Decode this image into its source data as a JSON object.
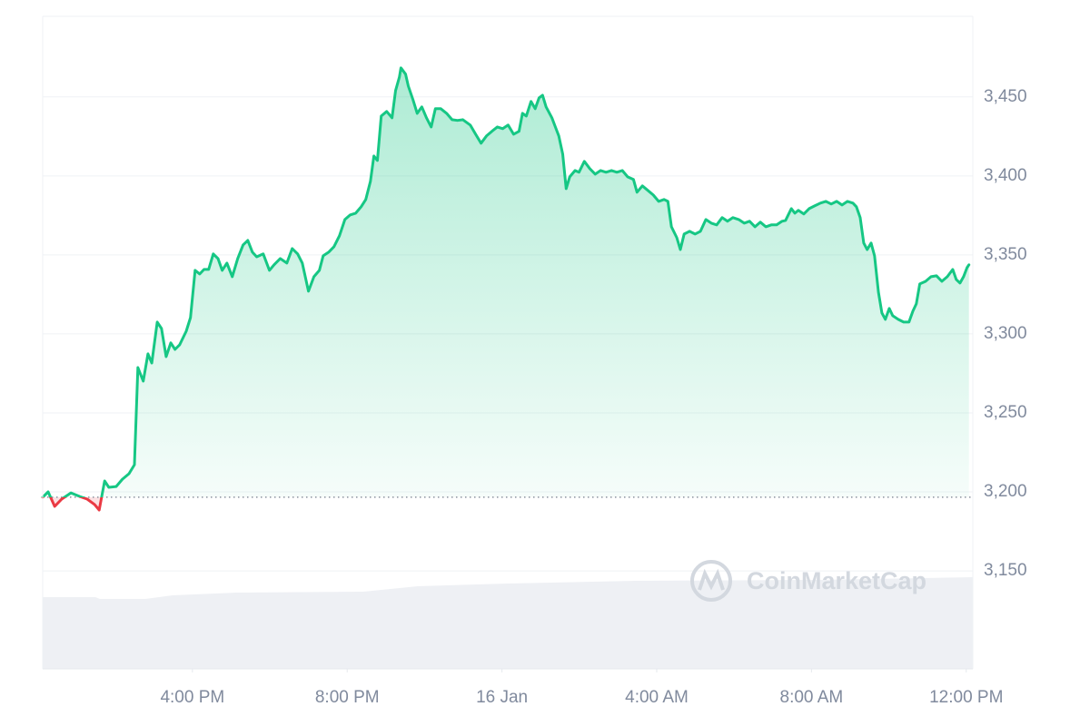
{
  "chart_data": {
    "type": "line",
    "watermark": "CoinMarketCap",
    "color": "#16c784",
    "negative_color": "#ea3943",
    "baseline": 3196.6,
    "grid": true,
    "y_axis_side": "right",
    "xlim": [
      12.13,
      36.17
    ],
    "ylim": [
      3088,
      3501
    ],
    "xticks": [
      {
        "value": 16,
        "label": "4:00 PM"
      },
      {
        "value": 20,
        "label": "8:00 PM"
      },
      {
        "value": 24,
        "label": "16 Jan"
      },
      {
        "value": 28,
        "label": "4:00 AM"
      },
      {
        "value": 32,
        "label": "8:00 AM"
      },
      {
        "value": 36,
        "label": "12:00 PM"
      }
    ],
    "yticks": [
      {
        "value": 3150,
        "label": "3,150"
      },
      {
        "value": 3200,
        "label": "3,200"
      },
      {
        "value": 3250,
        "label": "3,250"
      },
      {
        "value": 3300,
        "label": "3,300"
      },
      {
        "value": 3350,
        "label": "3,350"
      },
      {
        "value": 3400,
        "label": "3,400"
      },
      {
        "value": 3450,
        "label": "3,450"
      }
    ],
    "x": [
      12.13,
      12.27,
      12.44,
      12.62,
      12.86,
      13.09,
      13.28,
      13.47,
      13.59,
      13.73,
      13.84,
      14.03,
      14.19,
      14.36,
      14.5,
      14.59,
      14.73,
      14.85,
      14.95,
      15.09,
      15.2,
      15.32,
      15.44,
      15.55,
      15.67,
      15.84,
      15.95,
      16.07,
      16.19,
      16.3,
      16.42,
      16.54,
      16.66,
      16.77,
      16.89,
      17.03,
      17.17,
      17.31,
      17.43,
      17.55,
      17.66,
      17.83,
      17.99,
      18.11,
      18.27,
      18.44,
      18.58,
      18.72,
      18.84,
      19.0,
      19.14,
      19.28,
      19.38,
      19.52,
      19.66,
      19.8,
      19.94,
      20.08,
      20.22,
      20.36,
      20.48,
      20.6,
      20.69,
      20.78,
      20.88,
      21.02,
      21.16,
      21.25,
      21.35,
      21.39,
      21.51,
      21.58,
      21.7,
      21.81,
      21.93,
      22.05,
      22.17,
      22.28,
      22.42,
      22.57,
      22.71,
      22.85,
      22.99,
      23.18,
      23.32,
      23.46,
      23.6,
      23.74,
      23.88,
      24.02,
      24.16,
      24.3,
      24.44,
      24.53,
      24.63,
      24.75,
      24.86,
      24.96,
      25.05,
      25.14,
      25.29,
      25.38,
      25.47,
      25.57,
      25.66,
      25.75,
      25.89,
      25.99,
      26.13,
      26.27,
      26.41,
      26.55,
      26.69,
      26.83,
      26.97,
      27.11,
      27.25,
      27.4,
      27.49,
      27.63,
      27.77,
      27.91,
      28.05,
      28.19,
      28.29,
      28.38,
      28.52,
      28.61,
      28.71,
      28.85,
      28.99,
      29.13,
      29.27,
      29.41,
      29.55,
      29.69,
      29.83,
      29.97,
      30.12,
      30.26,
      30.4,
      30.54,
      30.68,
      30.82,
      30.96,
      31.1,
      31.24,
      31.33,
      31.48,
      31.57,
      31.66,
      31.8,
      31.94,
      32.08,
      32.23,
      32.37,
      32.51,
      32.65,
      32.79,
      32.93,
      33.07,
      33.16,
      33.26,
      33.35,
      33.44,
      33.54,
      33.63,
      33.73,
      33.82,
      33.91,
      34.01,
      34.1,
      34.24,
      34.38,
      34.52,
      34.62,
      34.71,
      34.8,
      34.95,
      35.09,
      35.23,
      35.37,
      35.51,
      35.65,
      35.74,
      35.84,
      35.93,
      36.02,
      36.07
    ],
    "values": [
      3196.6,
      3200.0,
      3190.8,
      3195.4,
      3199.4,
      3197.1,
      3195.4,
      3192.0,
      3188.5,
      3206.9,
      3202.9,
      3203.4,
      3208.0,
      3211.5,
      3217.2,
      3278.7,
      3270.1,
      3287.4,
      3281.6,
      3307.5,
      3303.4,
      3285.6,
      3294.3,
      3290.2,
      3293.1,
      3301.7,
      3310.3,
      3340.2,
      3337.9,
      3340.8,
      3340.8,
      3350.6,
      3347.7,
      3340.2,
      3344.8,
      3336.2,
      3347.7,
      3356.3,
      3359.2,
      3351.7,
      3348.8,
      3350.6,
      3340.2,
      3343.7,
      3347.7,
      3344.8,
      3354.0,
      3350.6,
      3344.8,
      3327.0,
      3336.2,
      3340.2,
      3349.4,
      3351.7,
      3355.2,
      3362.1,
      3372.4,
      3375.3,
      3376.4,
      3380.5,
      3385.1,
      3396.5,
      3412.6,
      3409.8,
      3437.9,
      3440.8,
      3436.8,
      3454.0,
      3462.6,
      3468.4,
      3464.4,
      3456.9,
      3448.3,
      3439.6,
      3443.7,
      3436.8,
      3431.0,
      3442.5,
      3442.5,
      3439.6,
      3435.6,
      3435.1,
      3435.6,
      3432.2,
      3426.4,
      3420.7,
      3425.3,
      3428.2,
      3431.0,
      3429.9,
      3432.2,
      3426.4,
      3428.2,
      3439.6,
      3437.9,
      3447.1,
      3442.5,
      3449.4,
      3451.1,
      3443.7,
      3436.8,
      3431.0,
      3425.3,
      3413.8,
      3391.9,
      3399.4,
      3403.4,
      3402.3,
      3409.2,
      3404.6,
      3401.1,
      3403.4,
      3402.3,
      3403.4,
      3402.3,
      3403.4,
      3399.4,
      3397.7,
      3389.7,
      3393.7,
      3390.8,
      3387.9,
      3383.9,
      3385.1,
      3383.9,
      3367.8,
      3360.9,
      3353.4,
      3363.2,
      3364.9,
      3363.2,
      3364.9,
      3372.4,
      3370.1,
      3369.0,
      3373.6,
      3371.3,
      3373.6,
      3372.4,
      3370.1,
      3371.3,
      3367.8,
      3370.7,
      3367.8,
      3369.0,
      3369.0,
      3371.3,
      3371.8,
      3379.3,
      3376.4,
      3378.2,
      3375.9,
      3379.3,
      3381.0,
      3382.8,
      3383.9,
      3382.2,
      3383.9,
      3381.6,
      3383.9,
      3382.8,
      3380.5,
      3373.6,
      3357.5,
      3353.4,
      3357.5,
      3349.4,
      3326.4,
      3313.2,
      3309.2,
      3316.1,
      3311.5,
      3309.2,
      3307.5,
      3307.5,
      3314.4,
      3319.0,
      3331.6,
      3333.3,
      3336.2,
      3336.8,
      3333.3,
      3336.2,
      3340.8,
      3334.5,
      3332.2,
      3336.2,
      3341.9,
      3343.7
    ]
  }
}
